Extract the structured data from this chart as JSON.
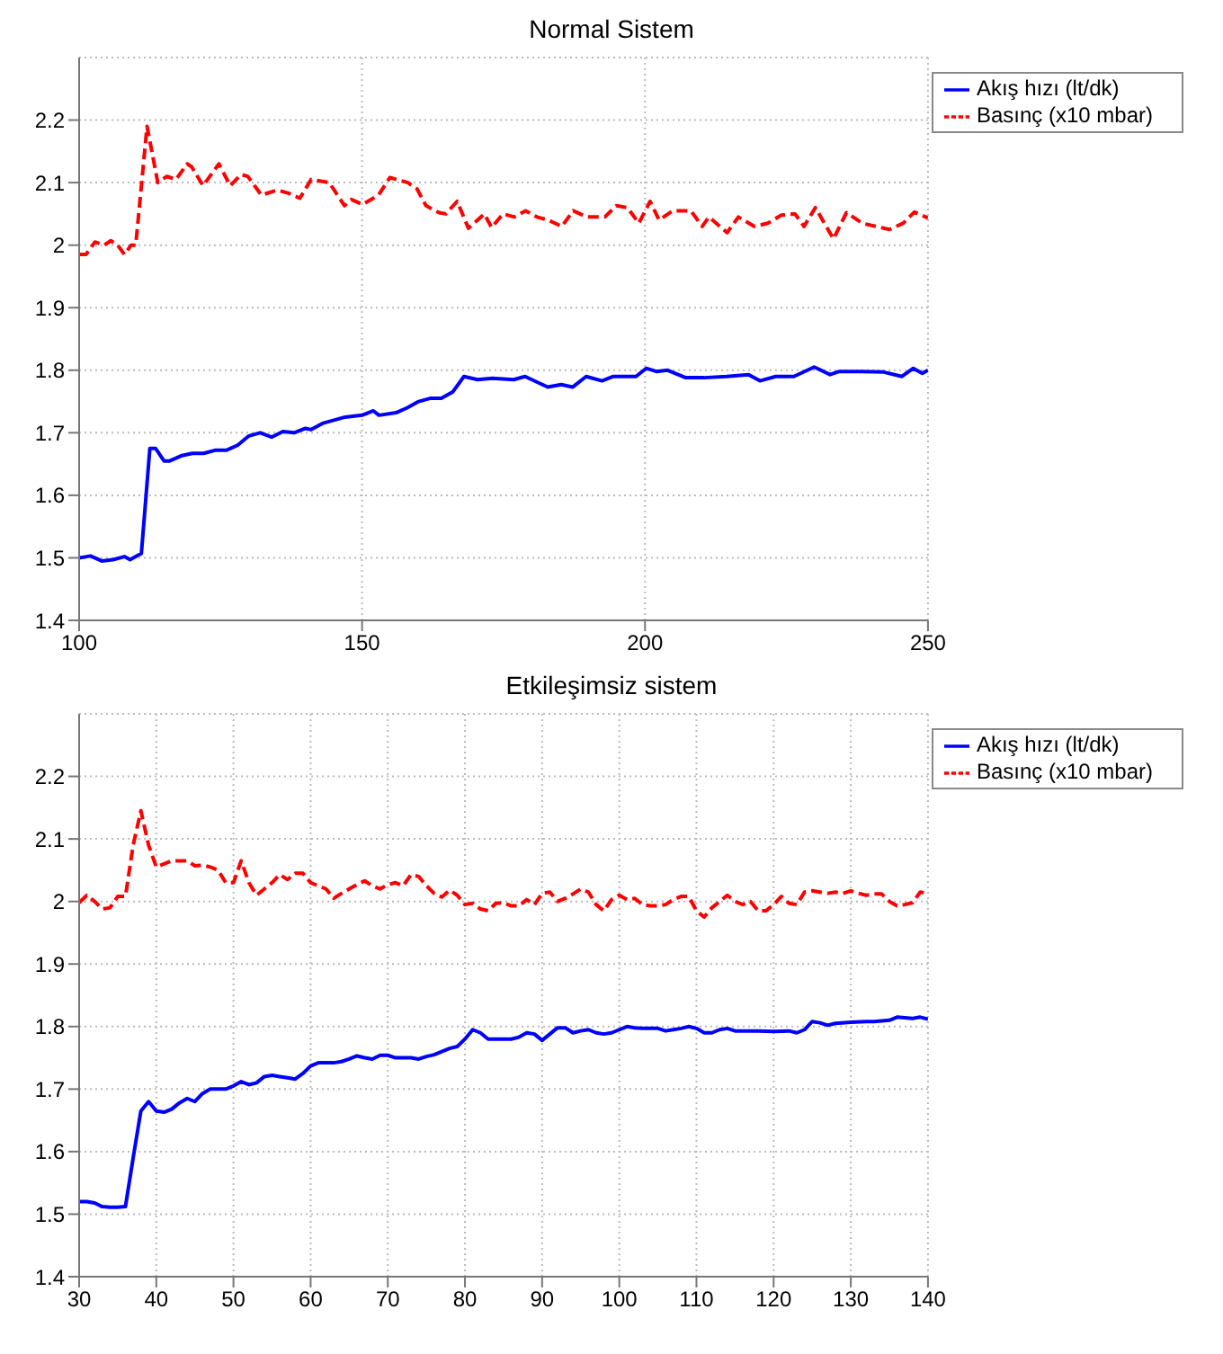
{
  "chart_data": [
    {
      "type": "line",
      "title": "Normal Sistem",
      "xlim": [
        100,
        250
      ],
      "xticks": [
        100,
        150,
        200,
        250
      ],
      "ylim": [
        1.4,
        2.3
      ],
      "yticks": [
        1.4,
        1.5,
        1.6,
        1.7,
        1.8,
        1.9,
        2,
        2.1,
        2.2
      ],
      "grid": true,
      "legend": "top right",
      "series": [
        {
          "name": "Akış hızı (lt/dk)",
          "color": "#0000ff",
          "line_style": "solid",
          "x": [
            100,
            102,
            104,
            106,
            108,
            109,
            111,
            112.5,
            113.5,
            115,
            116,
            118,
            120,
            122,
            124,
            126,
            128,
            130,
            132,
            134,
            136,
            138,
            140,
            141,
            143,
            145,
            147,
            150,
            152,
            153,
            156,
            158,
            160,
            162,
            164,
            166,
            168,
            170.4,
            173,
            176.8,
            178.8,
            182.8,
            185.2,
            187.2,
            189.6,
            192.4,
            194.4,
            198.4,
            200.2,
            202,
            204,
            207.2,
            210.4,
            214.4,
            218.3,
            220.3,
            223.1,
            226.3,
            229.9,
            232.7,
            234.3,
            238.2,
            242.2,
            245.4,
            247.4,
            249,
            250
          ],
          "values": [
            1.5,
            1.503,
            1.495,
            1.497,
            1.502,
            1.497,
            1.507,
            1.675,
            1.675,
            1.655,
            1.655,
            1.663,
            1.667,
            1.667,
            1.672,
            1.672,
            1.68,
            1.695,
            1.7,
            1.693,
            1.702,
            1.7,
            1.707,
            1.705,
            1.715,
            1.72,
            1.725,
            1.728,
            1.735,
            1.728,
            1.732,
            1.74,
            1.75,
            1.755,
            1.755,
            1.765,
            1.79,
            1.785,
            1.787,
            1.785,
            1.79,
            1.773,
            1.777,
            1.773,
            1.79,
            1.783,
            1.79,
            1.79,
            1.803,
            1.798,
            1.8,
            1.788,
            1.788,
            1.79,
            1.793,
            1.783,
            1.79,
            1.79,
            1.805,
            1.793,
            1.798,
            1.798,
            1.797,
            1.79,
            1.803,
            1.795,
            1.8
          ]
        },
        {
          "name": "Basınç (x10 mbar)",
          "color": "#ff0000",
          "line_style": "dashed",
          "x": [
            100,
            101.2,
            102.8,
            104.4,
            105.6,
            106.8,
            108,
            109.2,
            110,
            112,
            113.9,
            115.5,
            117.1,
            119.1,
            119.9,
            121.9,
            124.7,
            126.7,
            128.6,
            129.8,
            132.2,
            135,
            137,
            139,
            141,
            144.2,
            146.9,
            148.1,
            150.1,
            152.9,
            154.9,
            158.1,
            159.7,
            161.3,
            163.6,
            164.8,
            166.8,
            168.8,
            171.6,
            172.9,
            174.9,
            176.9,
            178.9,
            180.9,
            182.9,
            185.3,
            187.3,
            189.7,
            192.9,
            194.9,
            196.9,
            198.9,
            200.9,
            202.5,
            204.9,
            208.1,
            210.1,
            211.3,
            214.5,
            216.5,
            219.3,
            221.7,
            224.1,
            226.5,
            228.1,
            230.1,
            233.3,
            235.6,
            238.4,
            240.8,
            243.2,
            245.6,
            247.6,
            249.6,
            250
          ],
          "values": [
            1.985,
            1.985,
            2.005,
            2,
            2.007,
            2,
            1.985,
            2,
            2,
            2.19,
            2.1,
            2.11,
            2.105,
            2.13,
            2.125,
            2.095,
            2.13,
            2.095,
            2.113,
            2.11,
            2.08,
            2.088,
            2.083,
            2.075,
            2.105,
            2.1,
            2.063,
            2.073,
            2.065,
            2.08,
            2.108,
            2.1,
            2.09,
            2.063,
            2.052,
            2.05,
            2.07,
            2.027,
            2.05,
            2.028,
            2.05,
            2.045,
            2.055,
            2.045,
            2.04,
            2.03,
            2.055,
            2.045,
            2.045,
            2.063,
            2.06,
            2.035,
            2.07,
            2.04,
            2.055,
            2.055,
            2.03,
            2.045,
            2.02,
            2.045,
            2.03,
            2.035,
            2.048,
            2.05,
            2.03,
            2.06,
            2.01,
            2.052,
            2.035,
            2.03,
            2.025,
            2.035,
            2.053,
            2.045,
            2.043
          ]
        }
      ]
    },
    {
      "type": "line",
      "title": "Etkileşimsiz sistem",
      "xlim": [
        30,
        140
      ],
      "xticks": [
        30,
        40,
        50,
        60,
        70,
        80,
        90,
        100,
        110,
        120,
        130,
        140
      ],
      "ylim": [
        1.4,
        2.3
      ],
      "yticks": [
        1.4,
        1.5,
        1.6,
        1.7,
        1.8,
        1.9,
        2,
        2.1,
        2.2
      ],
      "grid": true,
      "legend": "top right",
      "series": [
        {
          "name": "Akış hızı (lt/dk)",
          "color": "#0000ff",
          "line_style": "solid",
          "x": [
            30,
            31,
            32,
            33,
            34,
            35,
            36,
            37,
            38,
            39,
            40,
            41,
            42,
            43,
            44,
            45,
            46,
            47,
            48,
            49,
            50,
            51,
            52,
            53,
            54,
            55,
            56,
            57,
            58,
            59,
            60,
            61,
            62,
            63,
            64,
            65,
            66,
            67,
            68,
            69,
            70,
            71,
            72,
            73,
            74,
            75,
            76,
            77,
            78,
            79,
            80,
            81,
            82,
            83,
            84,
            85,
            86,
            87,
            88,
            89,
            90,
            91,
            92,
            93,
            94,
            95,
            96,
            97,
            98,
            99,
            100,
            101,
            102,
            103,
            104,
            105,
            106,
            107,
            108,
            109,
            110,
            111,
            112,
            113,
            114,
            115,
            116,
            118,
            120,
            122,
            123,
            124,
            125,
            126,
            127,
            128,
            130,
            132,
            133,
            135,
            136,
            138,
            139,
            140
          ],
          "values": [
            1.52,
            1.52,
            1.518,
            1.512,
            1.511,
            1.511,
            1.512,
            1.59,
            1.665,
            1.68,
            1.665,
            1.663,
            1.668,
            1.678,
            1.685,
            1.68,
            1.693,
            1.7,
            1.7,
            1.7,
            1.705,
            1.712,
            1.707,
            1.71,
            1.72,
            1.722,
            1.72,
            1.718,
            1.716,
            1.725,
            1.737,
            1.742,
            1.742,
            1.742,
            1.744,
            1.748,
            1.753,
            1.75,
            1.748,
            1.754,
            1.754,
            1.75,
            1.75,
            1.75,
            1.748,
            1.752,
            1.755,
            1.76,
            1.765,
            1.768,
            1.78,
            1.795,
            1.79,
            1.78,
            1.78,
            1.78,
            1.78,
            1.783,
            1.79,
            1.788,
            1.778,
            1.788,
            1.798,
            1.798,
            1.79,
            1.793,
            1.795,
            1.79,
            1.788,
            1.79,
            1.795,
            1.8,
            1.798,
            1.797,
            1.797,
            1.797,
            1.793,
            1.795,
            1.797,
            1.8,
            1.797,
            1.79,
            1.79,
            1.795,
            1.797,
            1.793,
            1.793,
            1.793,
            1.792,
            1.793,
            1.79,
            1.795,
            1.808,
            1.806,
            1.802,
            1.805,
            1.807,
            1.808,
            1.808,
            1.81,
            1.815,
            1.813,
            1.815,
            1.812
          ]
        },
        {
          "name": "Basınç (x10 mbar)",
          "color": "#ff0000",
          "line_style": "dashed",
          "x": [
            30,
            31,
            32,
            33,
            34,
            35,
            36,
            37,
            38,
            39,
            40,
            41,
            42,
            43,
            44,
            45,
            46,
            47,
            48,
            49,
            50,
            51,
            52,
            53,
            54,
            55,
            56,
            57,
            58,
            59,
            60,
            61,
            62,
            63,
            64,
            65,
            66,
            67,
            68,
            69,
            70,
            71,
            72,
            73,
            74,
            75,
            76,
            77,
            78,
            79,
            80,
            81,
            82,
            83,
            84,
            85,
            86,
            87,
            88,
            89,
            90,
            91,
            92,
            93,
            94,
            95,
            96,
            97,
            98,
            99,
            100,
            101,
            102,
            103,
            104,
            105,
            106,
            107,
            108,
            109,
            110,
            111,
            112,
            113,
            114,
            115,
            116,
            117,
            118,
            119,
            120,
            121,
            122,
            123,
            124,
            125,
            126,
            127,
            128,
            129,
            130,
            131,
            132,
            133,
            134,
            135,
            136,
            137,
            138,
            139,
            140
          ],
          "values": [
            1.998,
            2.01,
            2,
            1.988,
            1.99,
            2.008,
            2.008,
            2.09,
            2.145,
            2.09,
            2.055,
            2.06,
            2.065,
            2.065,
            2.065,
            2.057,
            2.058,
            2.055,
            2.05,
            2.03,
            2.03,
            2.065,
            2.03,
            2.01,
            2.02,
            2.03,
            2.043,
            2.035,
            2.045,
            2.045,
            2.03,
            2.025,
            2.02,
            2.005,
            2.013,
            2.02,
            2.027,
            2.033,
            2.025,
            2.02,
            2.027,
            2.03,
            2.025,
            2.043,
            2.04,
            2.025,
            2.013,
            2.007,
            2.018,
            2.01,
            1.995,
            1.997,
            1.988,
            1.985,
            1.997,
            1.998,
            1.993,
            1.993,
            2.003,
            1.995,
            2.013,
            2.015,
            2,
            2.005,
            2.012,
            2.02,
            2.015,
            1.995,
            1.985,
            2.003,
            2.01,
            2.003,
            2.005,
            1.995,
            1.993,
            1.993,
            1.995,
            2.003,
            2.008,
            2.008,
            1.985,
            1.975,
            1.99,
            2,
            2.01,
            2,
            1.995,
            2,
            1.985,
            1.985,
            1.995,
            2.008,
            1.997,
            1.995,
            2.015,
            2.017,
            2.015,
            2.013,
            2.015,
            2.013,
            2.017,
            2.013,
            2.01,
            2.012,
            2.012,
            2,
            1.993,
            1.995,
            1.998,
            2.015,
            2.013
          ]
        }
      ]
    }
  ]
}
